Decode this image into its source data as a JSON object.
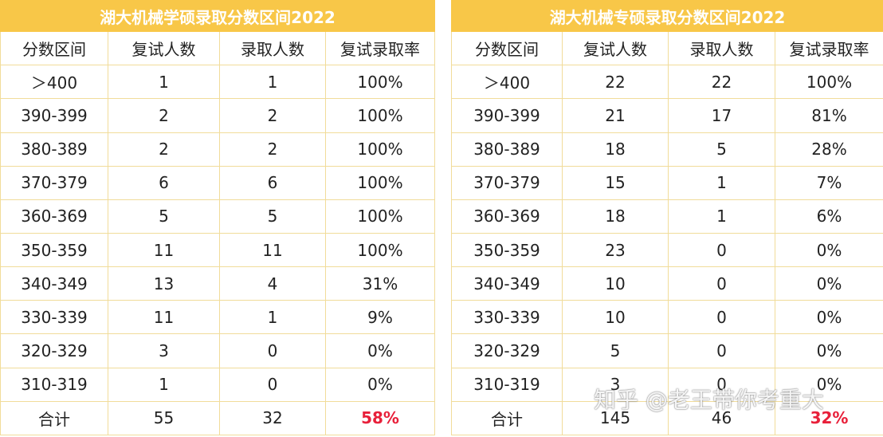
{
  "tables": [
    {
      "title": "湖大机械学硕录取分数区间2022",
      "header": [
        "分数区间",
        "复试人数",
        "录取人数",
        "复试录取率"
      ],
      "rows": [
        [
          "＞400",
          "1",
          "1",
          "100%"
        ],
        [
          "390-399",
          "2",
          "2",
          "100%"
        ],
        [
          "380-389",
          "2",
          "2",
          "100%"
        ],
        [
          "370-379",
          "6",
          "6",
          "100%"
        ],
        [
          "360-369",
          "5",
          "5",
          "100%"
        ],
        [
          "350-359",
          "11",
          "11",
          "100%"
        ],
        [
          "340-349",
          "13",
          "4",
          "31%"
        ],
        [
          "330-339",
          "11",
          "1",
          "9%"
        ],
        [
          "320-329",
          "3",
          "0",
          "0%"
        ],
        [
          "310-319",
          "1",
          "0",
          "0%"
        ]
      ],
      "total": [
        "合计",
        "55",
        "32",
        "58%"
      ]
    },
    {
      "title": "湖大机械专硕录取分数区间2022",
      "header": [
        "分数区间",
        "复试人数",
        "录取人数",
        "复试录取率"
      ],
      "rows": [
        [
          "＞400",
          "22",
          "22",
          "100%"
        ],
        [
          "390-399",
          "21",
          "17",
          "81%"
        ],
        [
          "380-389",
          "18",
          "5",
          "28%"
        ],
        [
          "370-379",
          "15",
          "1",
          "7%"
        ],
        [
          "360-369",
          "18",
          "1",
          "6%"
        ],
        [
          "350-359",
          "23",
          "0",
          "0%"
        ],
        [
          "340-349",
          "10",
          "0",
          "0%"
        ],
        [
          "330-339",
          "10",
          "0",
          "0%"
        ],
        [
          "320-329",
          "5",
          "0",
          "0%"
        ],
        [
          "310-319",
          "3",
          "0",
          "0%"
        ]
      ],
      "total": [
        "合计",
        "145",
        "46",
        "32%"
      ]
    }
  ],
  "watermark": "知乎 @老王带你考重大"
}
